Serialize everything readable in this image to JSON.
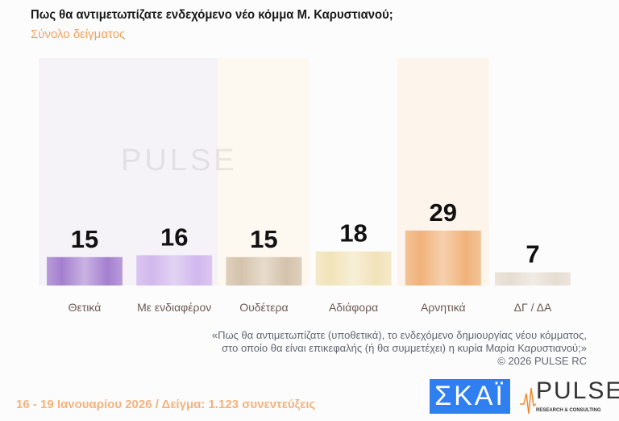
{
  "title": "Πως θα αντιμετωπίζατε ενδεχόμενο νέο κόμμα Μ. Καρυστιανού;",
  "subtitle": "Σύνολο δείγματος",
  "chart_data": {
    "type": "bar",
    "title": "Πως θα αντιμετωπίζατε ενδεχόμενο νέο κόμμα Μ. Καρυστιανού;",
    "categories": [
      "Θετικά",
      "Με ενδιαφέρον",
      "Ουδέτερα",
      "Αδιάφορα",
      "Αρνητικά",
      "ΔΓ / ΔΑ"
    ],
    "values": [
      15,
      16,
      15,
      18,
      29,
      7
    ],
    "colors": [
      "#a57fcf",
      "#d2b8ee",
      "#d4c3ac",
      "#f2e3b8",
      "#f0b27a",
      "#e6ddd2"
    ],
    "bg_colors": [
      "#f5f3f8",
      "#f5f3f8",
      "#fdf8f0",
      null,
      "#fdf5ec",
      null
    ],
    "ylim": [
      0,
      120
    ],
    "xlabel": "",
    "ylabel": ""
  },
  "note": {
    "line1": "«Πως θα αντιμετωπίζατε (υποθετικά), το ενδεχόμενο δημιουργίας νέου κόμματος,",
    "line2": "στο οποίο θα είναι επικεφαλής (ή θα συμμετέχει) η κυρία Μαρία Καρυστιανού;»",
    "copyright": "©  2026  PULSE RC"
  },
  "footer": "16 - 19 Ιανουαρίου 2026  /  Δείγμα:  1.123 συνεντεύξεις",
  "logos": {
    "skai": "ΣΚΑΪ",
    "pulse": "PULSE",
    "pulse_sub": "RESEARCH & CONSULTING"
  }
}
